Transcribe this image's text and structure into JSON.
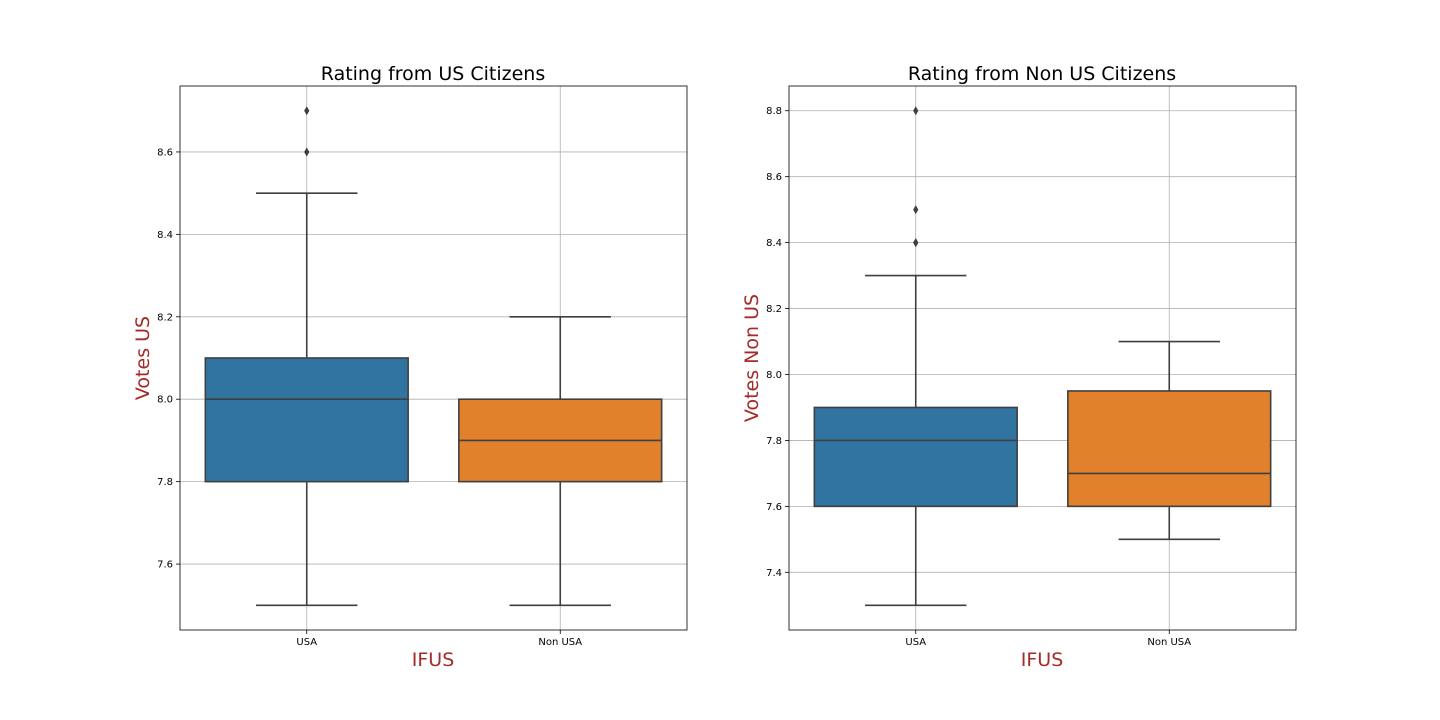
{
  "chart_data": [
    {
      "type": "box",
      "title": "Rating from US Citizens",
      "xlabel": "IFUS",
      "ylabel": "Votes US",
      "label_color": "#a52a2a",
      "categories": [
        "USA",
        "Non USA"
      ],
      "colors": [
        "#3274a1",
        "#e1812c"
      ],
      "ylim": [
        7.44,
        8.76
      ],
      "yticks": [
        "7.6",
        "7.8",
        "8.0",
        "8.2",
        "8.4",
        "8.6"
      ],
      "grid": true,
      "boxes": [
        {
          "category": "USA",
          "whisker_low": 7.5,
          "q1": 7.8,
          "median": 8.0,
          "q3": 8.1,
          "whisker_high": 8.5,
          "outliers": [
            8.6,
            8.7
          ]
        },
        {
          "category": "Non USA",
          "whisker_low": 7.5,
          "q1": 7.8,
          "median": 7.9,
          "q3": 8.0,
          "whisker_high": 8.2,
          "outliers": []
        }
      ]
    },
    {
      "type": "box",
      "title": "Rating from Non US Citizens",
      "xlabel": "IFUS",
      "ylabel": "Votes Non US",
      "label_color": "#a52a2a",
      "categories": [
        "USA",
        "Non USA"
      ],
      "colors": [
        "#3274a1",
        "#e1812c"
      ],
      "ylim": [
        7.225,
        8.875
      ],
      "yticks": [
        "7.4",
        "7.6",
        "7.8",
        "8.0",
        "8.2",
        "8.4",
        "8.6",
        "8.8"
      ],
      "grid": true,
      "boxes": [
        {
          "category": "USA",
          "whisker_low": 7.3,
          "q1": 7.6,
          "median": 7.8,
          "q3": 7.9,
          "whisker_high": 8.3,
          "outliers": [
            8.4,
            8.4,
            8.5,
            8.8
          ]
        },
        {
          "category": "Non USA",
          "whisker_low": 7.5,
          "q1": 7.6,
          "median": 7.7,
          "q3": 7.95,
          "whisker_high": 8.1,
          "outliers": []
        }
      ]
    }
  ]
}
